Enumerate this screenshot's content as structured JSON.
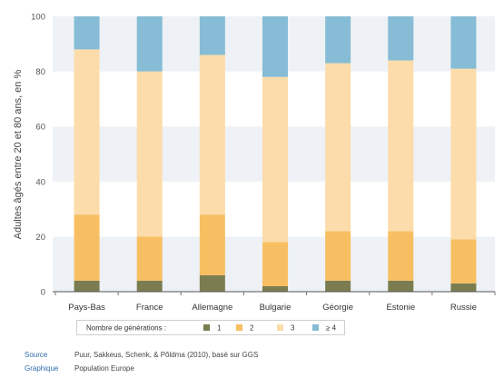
{
  "chart_data": {
    "type": "bar",
    "stacked": true,
    "categories": [
      "Pays-Bas",
      "France",
      "Allemagne",
      "Bulgarie",
      "Géorgie",
      "Estonie",
      "Russie"
    ],
    "series": [
      {
        "name": "1",
        "color": "#7b7d50",
        "values": [
          4,
          4,
          6,
          2,
          4,
          4,
          3
        ]
      },
      {
        "name": "2",
        "color": "#f8bf62",
        "values": [
          24,
          16,
          22,
          16,
          18,
          18,
          16
        ]
      },
      {
        "name": "3",
        "color": "#fcdcaa",
        "values": [
          60,
          60,
          58,
          60,
          61,
          62,
          62
        ]
      },
      {
        "name": "≥ 4",
        "color": "#86bcd5",
        "values": [
          12,
          20,
          14,
          22,
          17,
          16,
          19
        ]
      }
    ],
    "xlabel": "",
    "ylabel": "Adultes âgés entre 20 et 80 ans, en %",
    "ylim": [
      0,
      100
    ],
    "yticks": [
      0,
      20,
      40,
      60,
      80,
      100
    ],
    "background_bands": true,
    "band_color": "#eef1f5",
    "legend": {
      "title": "Nombre de générations :",
      "position": "bottom"
    }
  },
  "footer": {
    "source_label": "Source",
    "source_text": "Puur, Sakkeus, Schenk, & Põldma (2010), basé sur GGS",
    "graph_label": "Graphique",
    "graph_text": "Population Europe"
  }
}
